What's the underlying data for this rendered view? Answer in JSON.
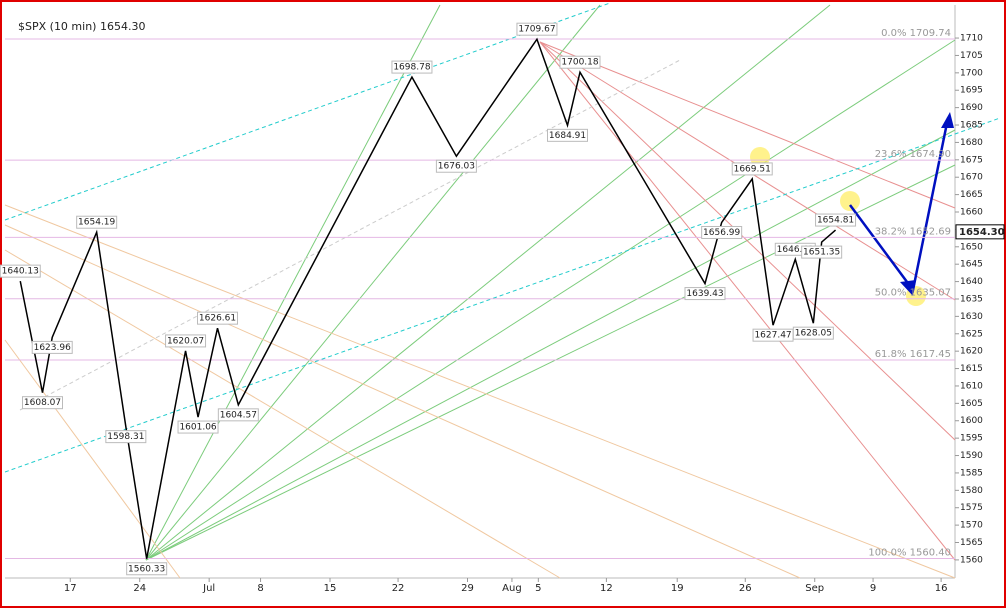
{
  "chart_data": {
    "type": "line",
    "title": "$SPX (10 min) 1654.30",
    "last": {
      "value": 1654.3,
      "label": "1654.30"
    },
    "series": [
      {
        "name": "$SPX",
        "color": "#000000",
        "x": [
          -3.6,
          -2.0,
          -1.3,
          1.9,
          4.0,
          5.5,
          8.3,
          9.2,
          10.6,
          12.1,
          24.6,
          27.8,
          33.6,
          35.8,
          36.7,
          45.7,
          46.9,
          49.1,
          50.6,
          52.2,
          53.5,
          54.1,
          55.1
        ],
        "values": [
          1640.13,
          1608.07,
          1623.96,
          1654.19,
          1598.31,
          1560.33,
          1620.07,
          1601.06,
          1626.61,
          1604.57,
          1698.78,
          1676.03,
          1709.67,
          1684.91,
          1700.18,
          1639.43,
          1656.99,
          1669.51,
          1627.47,
          1646.41,
          1628.05,
          1651.35,
          1654.81
        ]
      }
    ],
    "fib_levels": [
      {
        "value": 1709.74,
        "label": "0.0% 1709.74"
      },
      {
        "value": 1674.9,
        "label": "23.6% 1674.90"
      },
      {
        "value": 1652.69,
        "label": "38.2% 1652.69"
      },
      {
        "value": 1635.07,
        "label": "50.0% 1635.07"
      },
      {
        "value": 1617.45,
        "label": "61.8% 1617.45"
      },
      {
        "value": 1560.4,
        "label": "100.0% 1560.40"
      }
    ],
    "xlim": [
      -4.7,
      63.7
    ],
    "xticks": [
      {
        "value": 0,
        "label": "17"
      },
      {
        "value": 5,
        "label": "24"
      },
      {
        "value": 10,
        "label": "Jul"
      },
      {
        "value": 13.7,
        "label": "8"
      },
      {
        "value": 18.7,
        "label": "15"
      },
      {
        "value": 23.6,
        "label": "22"
      },
      {
        "value": 28.6,
        "label": "29"
      },
      {
        "value": 31.8,
        "label": "Aug"
      },
      {
        "value": 33.7,
        "label": "5"
      },
      {
        "value": 38.6,
        "label": "12"
      },
      {
        "value": 43.7,
        "label": "19"
      },
      {
        "value": 48.6,
        "label": "26"
      },
      {
        "value": 53.6,
        "label": "Sep"
      },
      {
        "value": 57.8,
        "label": "9"
      },
      {
        "value": 62.7,
        "label": "16"
      }
    ],
    "ylim": [
      1554.8,
      1719.5
    ],
    "yticks": [
      1560,
      1565,
      1570,
      1575,
      1580,
      1585,
      1590,
      1595,
      1600,
      1605,
      1610,
      1615,
      1620,
      1625,
      1630,
      1635,
      1640,
      1645,
      1650,
      1655,
      1660,
      1665,
      1670,
      1675,
      1680,
      1685,
      1690,
      1695,
      1700,
      1705,
      1710
    ]
  }
}
